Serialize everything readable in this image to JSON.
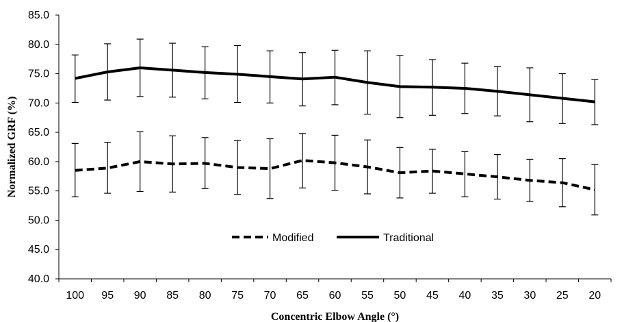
{
  "chart_data": {
    "type": "line",
    "title": "",
    "xlabel": "Concentric Elbow Angle (°)",
    "ylabel": "Normalized GRF (%)",
    "ylim": [
      40.0,
      85.0
    ],
    "yticks": [
      "40.0",
      "45.0",
      "50.0",
      "55.0",
      "60.0",
      "65.0",
      "70.0",
      "75.0",
      "80.0",
      "85.0"
    ],
    "categories": [
      "100",
      "95",
      "90",
      "85",
      "80",
      "75",
      "70",
      "65",
      "60",
      "55",
      "50",
      "45",
      "40",
      "35",
      "30",
      "25",
      "20"
    ],
    "grid": false,
    "legend_position": "lower-center",
    "series": [
      {
        "name": "Modified",
        "style": "dashed",
        "color": "#000000",
        "values": [
          58.5,
          58.9,
          60.0,
          59.6,
          59.7,
          59.0,
          58.8,
          60.2,
          59.8,
          59.1,
          58.1,
          58.4,
          57.9,
          57.4,
          56.8,
          56.4,
          55.2
        ],
        "err_upper": [
          63.1,
          63.3,
          65.1,
          64.4,
          64.1,
          63.6,
          63.9,
          64.8,
          64.5,
          63.7,
          62.4,
          62.1,
          61.7,
          61.2,
          60.4,
          60.5,
          59.5
        ],
        "err_lower": [
          54.0,
          54.6,
          54.9,
          54.8,
          55.4,
          54.4,
          53.7,
          55.5,
          55.1,
          54.5,
          53.8,
          54.6,
          54.0,
          53.6,
          53.2,
          52.3,
          50.9
        ]
      },
      {
        "name": "Traditional",
        "style": "solid",
        "color": "#000000",
        "values": [
          74.2,
          75.3,
          76.0,
          75.6,
          75.2,
          74.9,
          74.5,
          74.1,
          74.4,
          73.5,
          72.8,
          72.7,
          72.5,
          72.0,
          71.4,
          70.8,
          70.2
        ],
        "err_upper": [
          78.2,
          80.1,
          80.9,
          80.2,
          79.6,
          79.8,
          78.9,
          78.6,
          79.0,
          78.9,
          78.1,
          77.4,
          76.8,
          76.2,
          76.0,
          75.0,
          74.0
        ],
        "err_lower": [
          70.1,
          70.5,
          71.1,
          71.0,
          70.7,
          70.1,
          70.0,
          69.5,
          69.7,
          68.1,
          67.5,
          67.9,
          68.2,
          67.8,
          66.8,
          66.5,
          66.3
        ]
      }
    ]
  }
}
